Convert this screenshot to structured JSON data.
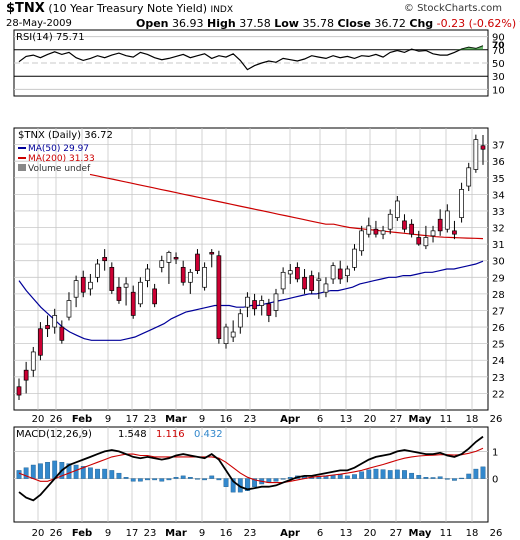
{
  "header": {
    "symbol": "$TNX",
    "name": "(10 Year Treasury Note Yield)",
    "exchange": "INDX",
    "brand": "© StockCharts.com",
    "date": "28-May-2009",
    "open_label": "Open",
    "open": "36.93",
    "high_label": "High",
    "high": "37.58",
    "low_label": "Low",
    "low": "35.78",
    "close_label": "Close",
    "close": "36.72",
    "chg_label": "Chg",
    "chg": "-0.23 (-0.62%)"
  },
  "colors": {
    "up": "#ffffff",
    "down": "#cc0033",
    "ma50": "#000099",
    "ma200": "#cc0000",
    "macd": "#000000",
    "signal": "#cc0000",
    "histogram": "#3388cc",
    "grid": "#c8c8c8"
  },
  "chart_data": [
    {
      "type": "line",
      "panel": "RSI",
      "legend": "RSI(14) 75.71",
      "ylim": [
        0,
        100
      ],
      "ticks": [
        10,
        30,
        50,
        70,
        90
      ],
      "ref_lines": [
        30,
        70
      ],
      "annotation": "70",
      "values": [
        52,
        60,
        62,
        58,
        63,
        67,
        63,
        66,
        58,
        54,
        57,
        61,
        58,
        62,
        65,
        61,
        59,
        66,
        63,
        58,
        55,
        57,
        60,
        63,
        58,
        61,
        64,
        57,
        61,
        59,
        64,
        54,
        40,
        46,
        50,
        53,
        51,
        57,
        55,
        53,
        56,
        61,
        59,
        57,
        61,
        58,
        60,
        57,
        61,
        60,
        63,
        59,
        66,
        69,
        66,
        71,
        68,
        69,
        64,
        62,
        62,
        66,
        71,
        74,
        72,
        76
      ]
    },
    {
      "type": "candlestick",
      "panel": "price",
      "legend": [
        "$TNX (Daily) 36.72",
        "MA(50) 29.97",
        "MA(200) 31.33",
        "Volume undef"
      ],
      "ylim": [
        21,
        38
      ],
      "yticks": [
        22,
        23,
        24,
        25,
        26,
        27,
        28,
        29,
        30,
        31,
        32,
        33,
        34,
        35,
        36,
        37
      ],
      "xticks": [
        "20",
        "26",
        "Feb",
        "9",
        "17",
        "23",
        "Mar",
        "9",
        "16",
        "23",
        "Apr",
        "6",
        "13",
        "20",
        "27",
        "May",
        "11",
        "18",
        "26"
      ],
      "candles": [
        {
          "o": 22.4,
          "h": 22.9,
          "l": 21.6,
          "c": 21.9
        },
        {
          "o": 23.4,
          "h": 23.9,
          "l": 22.0,
          "c": 22.8
        },
        {
          "o": 23.4,
          "h": 24.8,
          "l": 23.0,
          "c": 24.5
        },
        {
          "o": 25.9,
          "h": 26.3,
          "l": 24.0,
          "c": 24.3
        },
        {
          "o": 26.1,
          "h": 26.7,
          "l": 25.4,
          "c": 25.9
        },
        {
          "o": 26.0,
          "h": 27.1,
          "l": 25.6,
          "c": 26.7
        },
        {
          "o": 26.0,
          "h": 26.4,
          "l": 25.0,
          "c": 25.2
        },
        {
          "o": 26.6,
          "h": 28.1,
          "l": 26.4,
          "c": 27.6
        },
        {
          "o": 27.8,
          "h": 29.1,
          "l": 27.2,
          "c": 28.8
        },
        {
          "o": 29.0,
          "h": 29.4,
          "l": 27.8,
          "c": 28.1
        },
        {
          "o": 28.3,
          "h": 29.2,
          "l": 27.9,
          "c": 28.7
        },
        {
          "o": 29.0,
          "h": 30.1,
          "l": 28.7,
          "c": 29.8
        },
        {
          "o": 30.2,
          "h": 30.7,
          "l": 29.4,
          "c": 30.0
        },
        {
          "o": 29.6,
          "h": 29.9,
          "l": 28.0,
          "c": 28.2
        },
        {
          "o": 28.4,
          "h": 29.0,
          "l": 27.4,
          "c": 27.6
        },
        {
          "o": 28.4,
          "h": 29.0,
          "l": 27.3,
          "c": 28.6
        },
        {
          "o": 28.1,
          "h": 28.5,
          "l": 26.5,
          "c": 26.7
        },
        {
          "o": 27.4,
          "h": 29.0,
          "l": 27.2,
          "c": 28.7
        },
        {
          "o": 28.8,
          "h": 29.8,
          "l": 28.4,
          "c": 29.5
        },
        {
          "o": 28.3,
          "h": 28.6,
          "l": 27.2,
          "c": 27.4
        },
        {
          "o": 29.6,
          "h": 30.3,
          "l": 29.3,
          "c": 30.0
        },
        {
          "o": 29.9,
          "h": 30.6,
          "l": 28.6,
          "c": 30.5
        },
        {
          "o": 30.2,
          "h": 30.5,
          "l": 29.8,
          "c": 30.1
        },
        {
          "o": 29.6,
          "h": 30.0,
          "l": 28.5,
          "c": 28.7
        },
        {
          "o": 28.7,
          "h": 29.5,
          "l": 28.0,
          "c": 29.3
        },
        {
          "o": 30.4,
          "h": 30.7,
          "l": 29.2,
          "c": 29.4
        },
        {
          "o": 28.4,
          "h": 29.9,
          "l": 28.2,
          "c": 29.6
        },
        {
          "o": 30.5,
          "h": 30.7,
          "l": 29.6,
          "c": 30.4
        },
        {
          "o": 30.3,
          "h": 30.6,
          "l": 25.0,
          "c": 25.3
        },
        {
          "o": 25.0,
          "h": 26.2,
          "l": 24.7,
          "c": 26.0
        },
        {
          "o": 25.4,
          "h": 26.4,
          "l": 25.1,
          "c": 25.7
        },
        {
          "o": 26.0,
          "h": 27.1,
          "l": 25.6,
          "c": 26.8
        },
        {
          "o": 27.2,
          "h": 28.1,
          "l": 26.6,
          "c": 27.8
        },
        {
          "o": 27.6,
          "h": 28.0,
          "l": 26.7,
          "c": 27.1
        },
        {
          "o": 27.3,
          "h": 27.9,
          "l": 26.7,
          "c": 27.6
        },
        {
          "o": 27.4,
          "h": 27.7,
          "l": 26.3,
          "c": 26.7
        },
        {
          "o": 27.0,
          "h": 28.3,
          "l": 26.6,
          "c": 28.0
        },
        {
          "o": 28.3,
          "h": 29.6,
          "l": 28.0,
          "c": 29.3
        },
        {
          "o": 29.2,
          "h": 29.8,
          "l": 28.6,
          "c": 29.4
        },
        {
          "o": 29.6,
          "h": 29.9,
          "l": 28.7,
          "c": 28.9
        },
        {
          "o": 29.0,
          "h": 29.5,
          "l": 28.0,
          "c": 28.3
        },
        {
          "o": 29.1,
          "h": 29.4,
          "l": 28.0,
          "c": 28.2
        },
        {
          "o": 28.8,
          "h": 29.3,
          "l": 27.7,
          "c": 28.9
        },
        {
          "o": 28.1,
          "h": 29.0,
          "l": 27.8,
          "c": 28.6
        },
        {
          "o": 28.9,
          "h": 29.9,
          "l": 28.6,
          "c": 29.7
        },
        {
          "o": 29.5,
          "h": 30.0,
          "l": 28.6,
          "c": 28.9
        },
        {
          "o": 29.1,
          "h": 29.7,
          "l": 28.7,
          "c": 29.5
        },
        {
          "o": 29.6,
          "h": 31.0,
          "l": 29.4,
          "c": 30.7
        },
        {
          "o": 30.6,
          "h": 32.1,
          "l": 30.3,
          "c": 31.8
        },
        {
          "o": 31.6,
          "h": 32.6,
          "l": 31.4,
          "c": 32.1
        },
        {
          "o": 31.9,
          "h": 32.4,
          "l": 31.4,
          "c": 31.6
        },
        {
          "o": 31.6,
          "h": 32.1,
          "l": 31.3,
          "c": 31.8
        },
        {
          "o": 31.9,
          "h": 33.1,
          "l": 31.6,
          "c": 32.8
        },
        {
          "o": 32.6,
          "h": 33.9,
          "l": 32.4,
          "c": 33.6
        },
        {
          "o": 32.4,
          "h": 32.8,
          "l": 31.7,
          "c": 31.9
        },
        {
          "o": 32.2,
          "h": 32.5,
          "l": 31.4,
          "c": 31.6
        },
        {
          "o": 31.4,
          "h": 31.8,
          "l": 30.9,
          "c": 31.0
        },
        {
          "o": 30.9,
          "h": 32.1,
          "l": 30.7,
          "c": 31.4
        },
        {
          "o": 31.5,
          "h": 32.1,
          "l": 31.1,
          "c": 31.8
        },
        {
          "o": 32.5,
          "h": 33.1,
          "l": 31.5,
          "c": 31.8
        },
        {
          "o": 31.9,
          "h": 33.4,
          "l": 31.7,
          "c": 33.0
        },
        {
          "o": 31.8,
          "h": 32.4,
          "l": 31.3,
          "c": 31.6
        },
        {
          "o": 32.6,
          "h": 34.7,
          "l": 32.3,
          "c": 34.3
        },
        {
          "o": 34.5,
          "h": 35.9,
          "l": 34.2,
          "c": 35.6
        },
        {
          "o": 35.5,
          "h": 37.6,
          "l": 35.3,
          "c": 37.3
        },
        {
          "o": 36.93,
          "h": 37.58,
          "l": 35.78,
          "c": 36.72
        }
      ],
      "ma50": [
        28.8,
        28.2,
        27.7,
        27.2,
        26.8,
        26.4,
        26.0,
        25.7,
        25.5,
        25.3,
        25.2,
        25.2,
        25.2,
        25.2,
        25.2,
        25.3,
        25.4,
        25.6,
        25.8,
        26.0,
        26.2,
        26.5,
        26.7,
        26.9,
        27.0,
        27.1,
        27.2,
        27.3,
        27.3,
        27.3,
        27.2,
        27.2,
        27.3,
        27.3,
        27.4,
        27.5,
        27.6,
        27.7,
        27.8,
        27.9,
        28.0,
        28.0,
        28.1,
        28.2,
        28.2,
        28.3,
        28.4,
        28.6,
        28.7,
        28.8,
        28.9,
        29.0,
        29.0,
        29.1,
        29.1,
        29.2,
        29.3,
        29.3,
        29.4,
        29.5,
        29.5,
        29.6,
        29.7,
        29.8,
        29.97
      ],
      "ma200": [
        35.2,
        35.1,
        35.0,
        34.9,
        34.8,
        34.7,
        34.6,
        34.5,
        34.4,
        34.3,
        34.2,
        34.1,
        34.0,
        33.9,
        33.8,
        33.7,
        33.6,
        33.5,
        33.4,
        33.3,
        33.2,
        33.1,
        33.0,
        32.9,
        32.8,
        32.7,
        32.6,
        32.5,
        32.4,
        32.3,
        32.2,
        32.2,
        32.1,
        32.0,
        31.95,
        31.9,
        31.85,
        31.8,
        31.75,
        31.7,
        31.65,
        31.6,
        31.55,
        31.5,
        31.45,
        31.42,
        31.4,
        31.38,
        31.36,
        31.35,
        31.33
      ]
    },
    {
      "type": "line",
      "panel": "MACD",
      "legend": [
        "MACD(12,26,9)",
        "1.548",
        "1.116",
        "0.432"
      ],
      "yticks": [
        1,
        0
      ],
      "ylim": [
        -1.6,
        1.9
      ],
      "macd": [
        -0.5,
        -0.7,
        -0.8,
        -0.6,
        -0.3,
        0.0,
        0.3,
        0.5,
        0.6,
        0.7,
        0.8,
        0.9,
        1.0,
        1.05,
        1.0,
        0.9,
        0.8,
        0.75,
        0.8,
        0.75,
        0.7,
        0.75,
        0.85,
        0.9,
        0.85,
        0.8,
        0.75,
        0.9,
        0.7,
        0.3,
        -0.1,
        -0.3,
        -0.4,
        -0.35,
        -0.3,
        -0.3,
        -0.25,
        -0.15,
        -0.05,
        0.05,
        0.1,
        0.1,
        0.15,
        0.2,
        0.25,
        0.3,
        0.3,
        0.4,
        0.55,
        0.7,
        0.8,
        0.85,
        0.9,
        1.0,
        1.05,
        1.0,
        0.95,
        0.9,
        0.9,
        0.95,
        0.85,
        0.8,
        0.9,
        1.1,
        1.35,
        1.548
      ],
      "signal": [
        0.2,
        0.1,
        0.0,
        -0.1,
        -0.1,
        0.0,
        0.1,
        0.2,
        0.3,
        0.4,
        0.5,
        0.6,
        0.7,
        0.8,
        0.85,
        0.9,
        0.9,
        0.85,
        0.85,
        0.8,
        0.8,
        0.8,
        0.8,
        0.8,
        0.8,
        0.8,
        0.8,
        0.8,
        0.75,
        0.6,
        0.4,
        0.2,
        0.05,
        -0.05,
        -0.1,
        -0.15,
        -0.15,
        -0.15,
        -0.1,
        -0.05,
        0.0,
        0.05,
        0.08,
        0.1,
        0.13,
        0.16,
        0.2,
        0.25,
        0.3,
        0.38,
        0.45,
        0.52,
        0.6,
        0.68,
        0.75,
        0.8,
        0.83,
        0.85,
        0.86,
        0.88,
        0.88,
        0.87,
        0.88,
        0.93,
        1.0,
        1.116
      ],
      "histogram": [
        0.3,
        0.4,
        0.5,
        0.55,
        0.6,
        0.65,
        0.6,
        0.55,
        0.5,
        0.45,
        0.4,
        0.35,
        0.35,
        0.3,
        0.2,
        0.05,
        -0.1,
        -0.1,
        -0.05,
        -0.05,
        -0.1,
        -0.05,
        0.05,
        0.1,
        0.05,
        0.0,
        -0.05,
        0.1,
        -0.05,
        -0.3,
        -0.5,
        -0.5,
        -0.45,
        -0.3,
        -0.2,
        -0.15,
        -0.1,
        0.0,
        0.05,
        0.1,
        0.1,
        0.05,
        0.07,
        0.1,
        0.12,
        0.14,
        0.1,
        0.15,
        0.25,
        0.32,
        0.35,
        0.33,
        0.3,
        0.32,
        0.3,
        0.2,
        0.12,
        0.05,
        0.04,
        0.07,
        -0.03,
        -0.07,
        0.02,
        0.17,
        0.35,
        0.432
      ]
    }
  ]
}
